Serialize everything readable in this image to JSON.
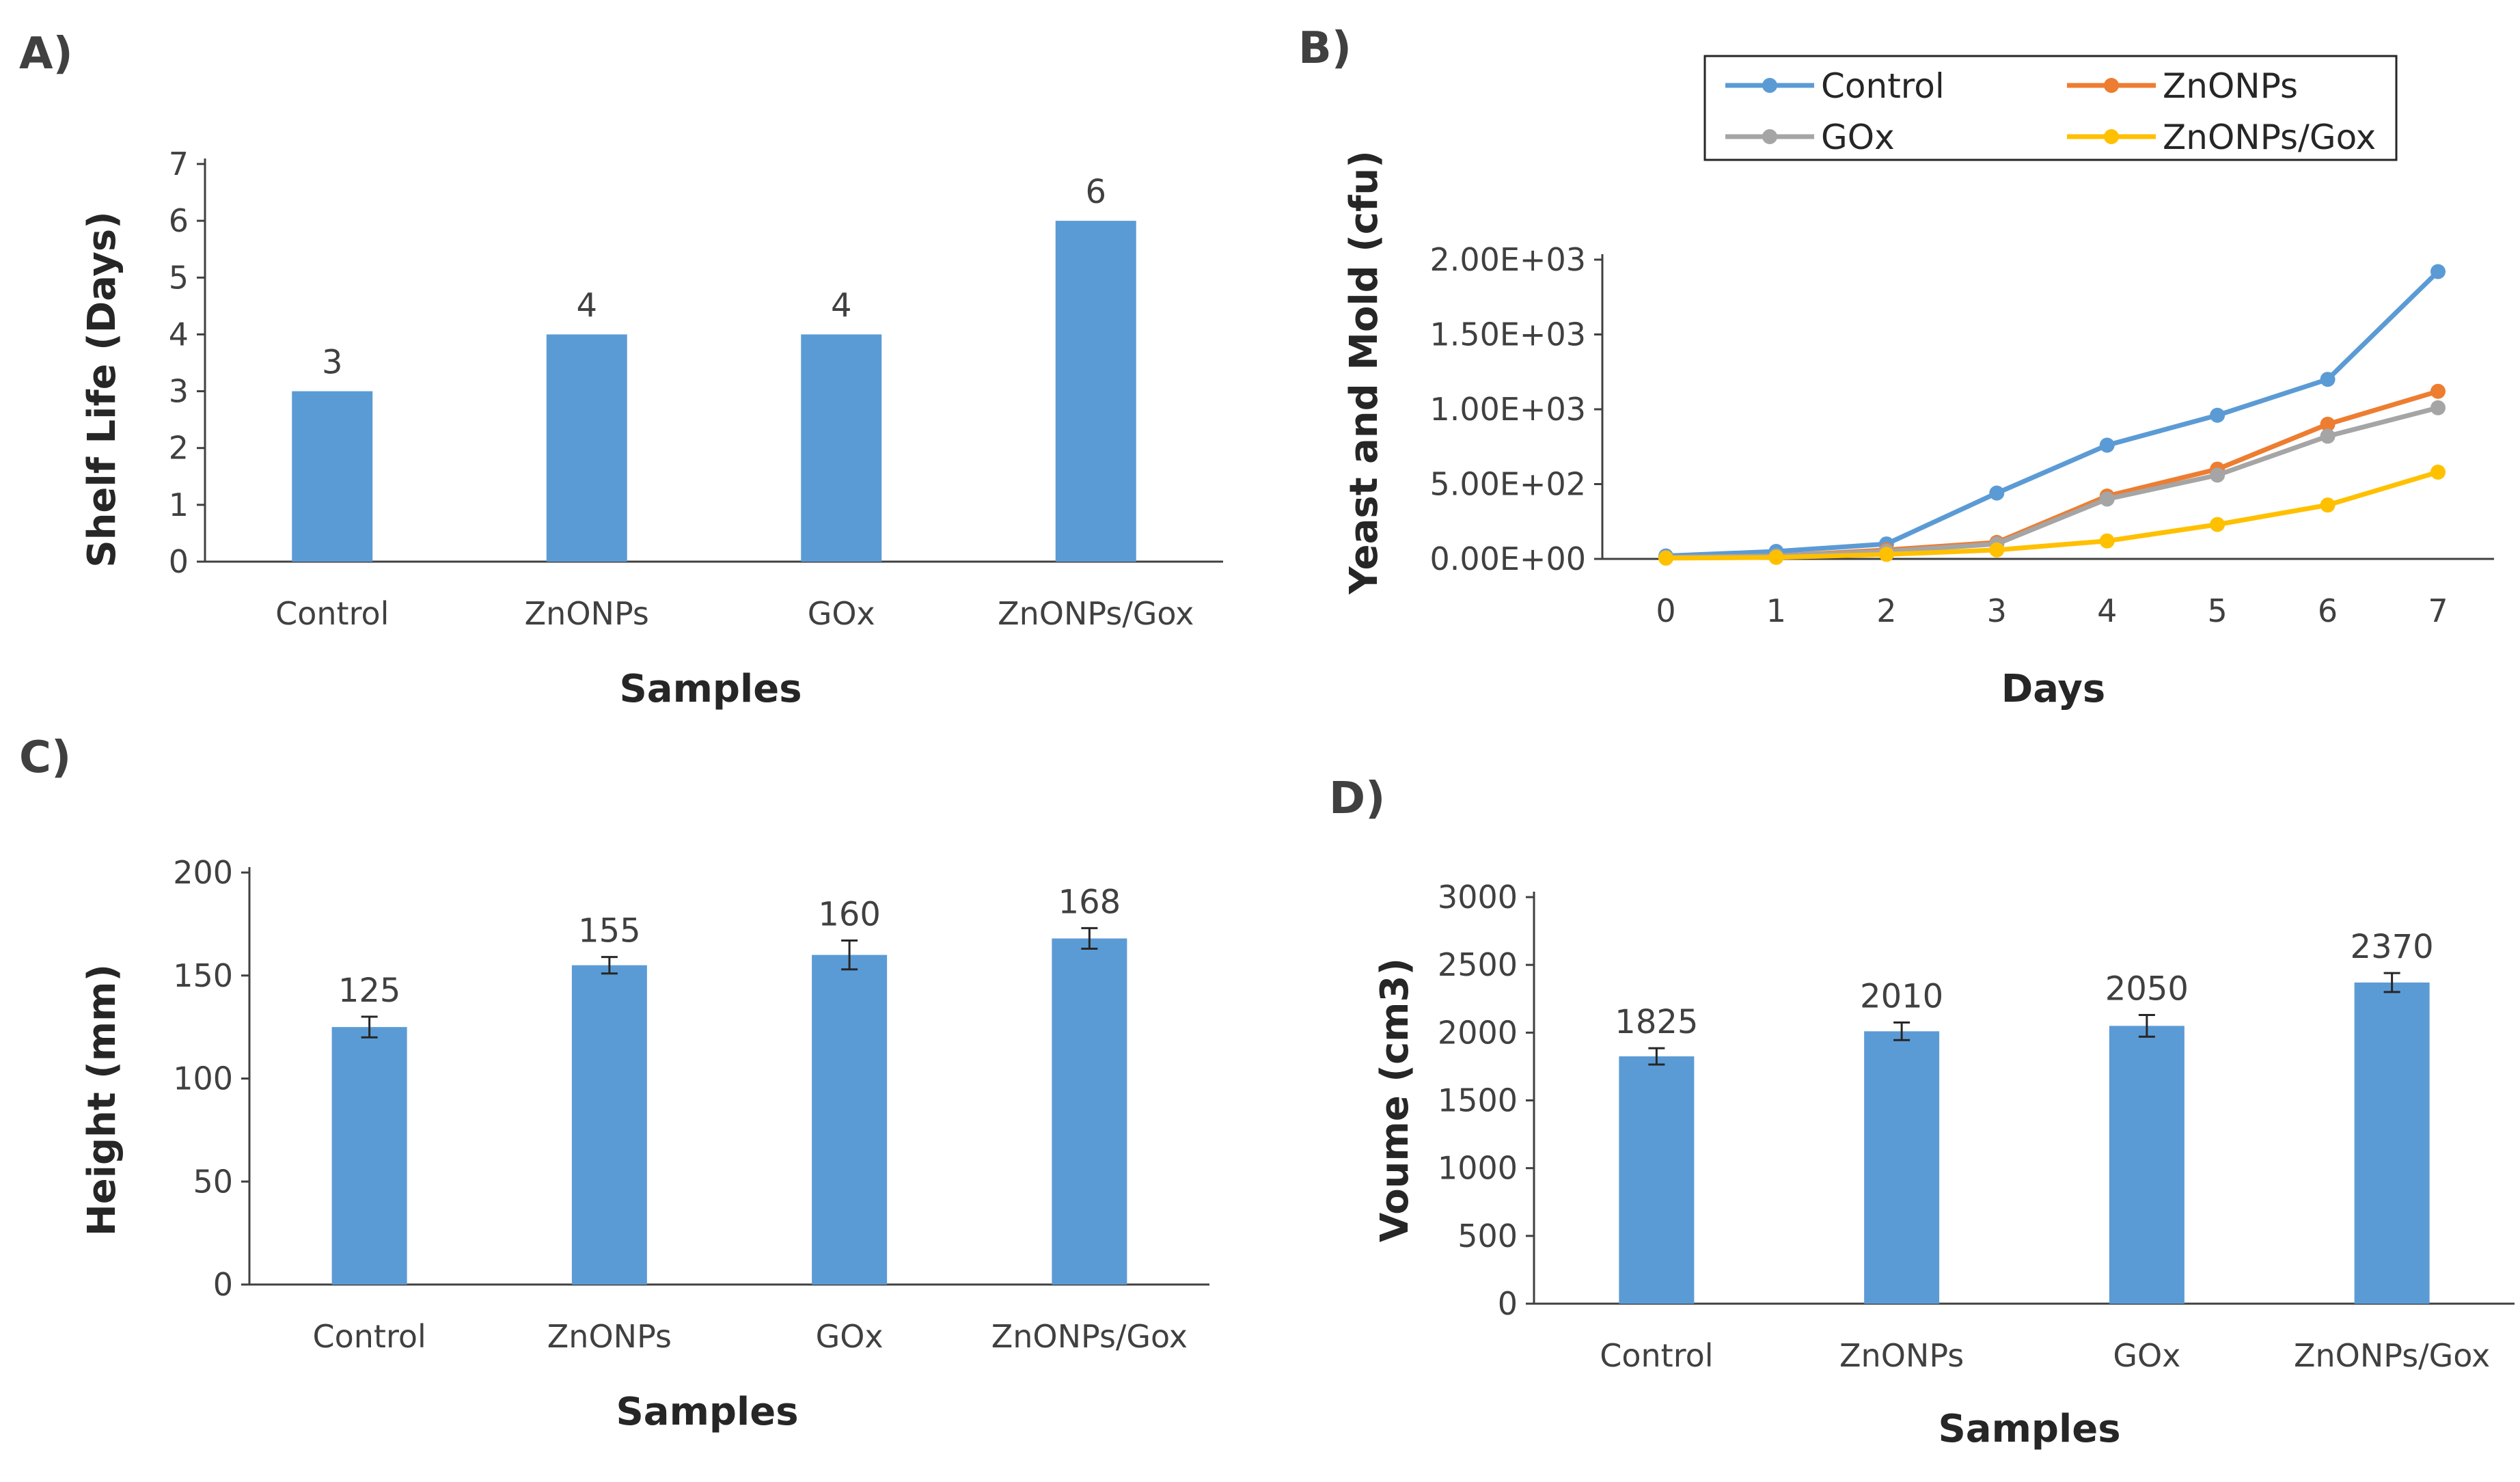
{
  "colors": {
    "bar": "#5b9bd5",
    "axis": "#404040",
    "Control": "#5b9bd5",
    "ZnONPs": "#ed7d31",
    "GOx": "#a5a5a5",
    "ZnONPs/Gox": "#ffc000"
  },
  "chart_data": [
    {
      "panel": "A)",
      "type": "bar",
      "categories": [
        "Control",
        "ZnONPs",
        "GOx",
        "ZnONPs/Gox"
      ],
      "values": [
        3,
        4,
        4,
        6
      ],
      "data_labels": [
        "3",
        "4",
        "4",
        "6"
      ],
      "xlabel": "Samples",
      "ylabel": "Shelf Life (Days)",
      "ylim": [
        0,
        7
      ],
      "yticks": [
        "0",
        "1",
        "2",
        "3",
        "4",
        "5",
        "6",
        "7"
      ],
      "grid": false
    },
    {
      "panel": "B)",
      "type": "line",
      "x": [
        0,
        1,
        2,
        3,
        4,
        5,
        6,
        7
      ],
      "xticks": [
        "0",
        "1",
        "2",
        "3",
        "4",
        "5",
        "6",
        "7"
      ],
      "series": [
        {
          "name": "Control",
          "values": [
            20,
            50,
            100,
            440,
            760,
            960,
            1200,
            1920
          ]
        },
        {
          "name": "ZnONPs",
          "values": [
            10,
            20,
            60,
            110,
            420,
            600,
            900,
            1120
          ]
        },
        {
          "name": "GOx",
          "values": [
            10,
            20,
            50,
            100,
            400,
            560,
            820,
            1010
          ]
        },
        {
          "name": "ZnONPs/Gox",
          "values": [
            5,
            10,
            30,
            60,
            120,
            230,
            360,
            580
          ]
        }
      ],
      "xlabel": "Days",
      "ylabel": "Yeast and Mold (cfu)",
      "ylim": [
        0,
        2000
      ],
      "yticks": [
        "0.00E+00",
        "5.00E+02",
        "1.00E+03",
        "1.50E+03",
        "2.00E+03"
      ],
      "legend_placement": "top",
      "grid": false
    },
    {
      "panel": "C)",
      "type": "bar",
      "categories": [
        "Control",
        "ZnONPs",
        "GOx",
        "ZnONPs/Gox"
      ],
      "values": [
        125,
        155,
        160,
        168
      ],
      "errors": [
        5,
        4,
        7,
        5
      ],
      "data_labels": [
        "125",
        "155",
        "160",
        "168"
      ],
      "xlabel": "Samples",
      "ylabel": "Height (mm)",
      "ylim": [
        0,
        200
      ],
      "yticks": [
        "0",
        "50",
        "100",
        "150",
        "200"
      ],
      "grid": false
    },
    {
      "panel": "D)",
      "type": "bar",
      "categories": [
        "Control",
        "ZnONPs",
        "GOx",
        "ZnONPs/Gox"
      ],
      "values": [
        1825,
        2010,
        2050,
        2370
      ],
      "errors": [
        60,
        65,
        80,
        70
      ],
      "data_labels": [
        "1825",
        "2010",
        "2050",
        "2370"
      ],
      "xlabel": "Samples",
      "ylabel": "Voume (cm3)",
      "ylim": [
        0,
        3000
      ],
      "yticks": [
        "0",
        "500",
        "1000",
        "1500",
        "2000",
        "2500",
        "3000"
      ],
      "grid": false
    }
  ]
}
